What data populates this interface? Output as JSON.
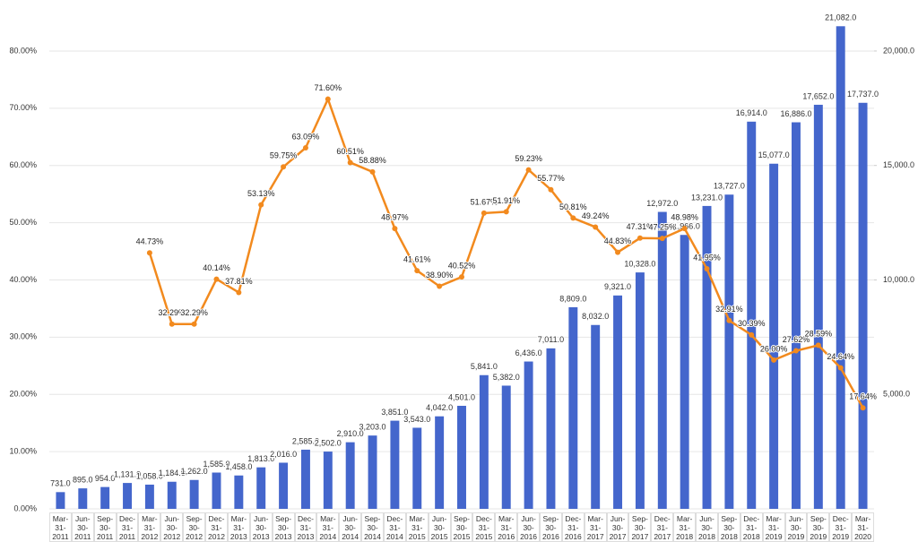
{
  "chart_data": {
    "type": "bar-line",
    "categories": [
      "Mar-31-2011",
      "Jun-30-2011",
      "Sep-30-2011",
      "Dec-31-2011",
      "Mar-31-2012",
      "Jun-30-2012",
      "Sep-30-2012",
      "Dec-31-2012",
      "Mar-31-2013",
      "Jun-30-2013",
      "Sep-30-2013",
      "Dec-31-2013",
      "Mar-31-2014",
      "Jun-30-2014",
      "Sep-30-2014",
      "Dec-31-2014",
      "Mar-31-2015",
      "Jun-30-2015",
      "Sep-30-2015",
      "Dec-31-2015",
      "Mar-31-2016",
      "Jun-30-2016",
      "Sep-30-2016",
      "Dec-31-2016",
      "Mar-31-2017",
      "Jun-30-2017",
      "Sep-30-2017",
      "Dec-31-2017",
      "Mar-31-2018",
      "Jun-30-2018",
      "Sep-30-2018",
      "Dec-31-2018",
      "Mar-31-2019",
      "Jun-30-2019",
      "Sep-30-2019",
      "Dec-31-2019",
      "Mar-31-2020"
    ],
    "series": [
      {
        "type": "bar",
        "axis": "y2",
        "color": "#4466cc",
        "values": [
          731,
          895,
          954,
          1131,
          1058,
          1184,
          1262,
          1585,
          1458,
          1813,
          2016,
          2585,
          2502,
          2910,
          3203,
          3851,
          3543,
          4042,
          4501,
          5841,
          5382,
          6436,
          7011,
          8809,
          8032,
          9321,
          10328,
          12972,
          11966,
          13231,
          13727,
          16914,
          15077,
          16886,
          17652,
          21082,
          17737
        ],
        "value_labels": [
          "731.0",
          "895.0",
          "954.0",
          "1,131.0",
          "1,058.0",
          "1,184.0",
          "1,262.0",
          "1,585.0",
          "1,458.0",
          "1,813.0",
          "2,016.0",
          "2,585.0",
          "2,502.0",
          "2,910.0",
          "3,203.0",
          "3,851.0",
          "3,543.0",
          "4,042.0",
          "4,501.0",
          "5,841.0",
          "5,382.0",
          "6,436.0",
          "7,011.0",
          "8,809.0",
          "8,032.0",
          "9,321.0",
          "10,328.0",
          "12,972.0",
          "11,966.0",
          "13,231.0",
          "13,727.0",
          "16,914.0",
          "15,077.0",
          "16,886.0",
          "17,652.0",
          "21,082.0",
          "17,737.0"
        ]
      },
      {
        "type": "line",
        "axis": "y",
        "color": "#f28a1e",
        "values": [
          null,
          null,
          null,
          null,
          44.73,
          32.29,
          32.29,
          40.14,
          37.81,
          53.13,
          59.75,
          63.09,
          71.6,
          60.51,
          58.88,
          48.97,
          41.61,
          38.9,
          40.52,
          51.67,
          51.91,
          59.23,
          55.77,
          50.81,
          49.24,
          44.83,
          47.31,
          47.25,
          48.98,
          41.95,
          32.91,
          30.39,
          26.0,
          27.62,
          28.59,
          24.64,
          17.64
        ],
        "value_labels": [
          null,
          null,
          null,
          null,
          "44.73%",
          "32.29%",
          "32.29%",
          "40.14%",
          "37.81%",
          "53.13%",
          "59.75%",
          "63.09%",
          "71.60%",
          "60.51%",
          "58.88%",
          "48.97%",
          "41.61%",
          "38.90%",
          "40.52%",
          "51.67%",
          "51.91%",
          "59.23%",
          "55.77%",
          "50.81%",
          "49.24%",
          "44.83%",
          "47.31%",
          "47.25%",
          "48.98%",
          "41.95%",
          "32.91%",
          "30.39%",
          "26.00%",
          "27.62%",
          "28.59%",
          "24.64%",
          "17.64%"
        ]
      }
    ],
    "ylim": [
      0,
      85
    ],
    "yticks": [
      {
        "value": 0,
        "label": "0.00%"
      },
      {
        "value": 10,
        "label": "10.00%"
      },
      {
        "value": 20,
        "label": "20.00%"
      },
      {
        "value": 30,
        "label": "30.00%"
      },
      {
        "value": 40,
        "label": "40.00%"
      },
      {
        "value": 50,
        "label": "50.00%"
      },
      {
        "value": 60,
        "label": "60.00%"
      },
      {
        "value": 70,
        "label": "70.00%"
      },
      {
        "value": 80,
        "label": "80.00%"
      }
    ],
    "y2lim": [
      0,
      21250
    ],
    "y2ticks": [
      {
        "value": 5000,
        "label": "5,000.0"
      },
      {
        "value": 10000,
        "label": "10,000.0"
      },
      {
        "value": 15000,
        "label": "15,000.0"
      },
      {
        "value": 20000,
        "label": "20,000.0"
      }
    ],
    "grid": true
  }
}
